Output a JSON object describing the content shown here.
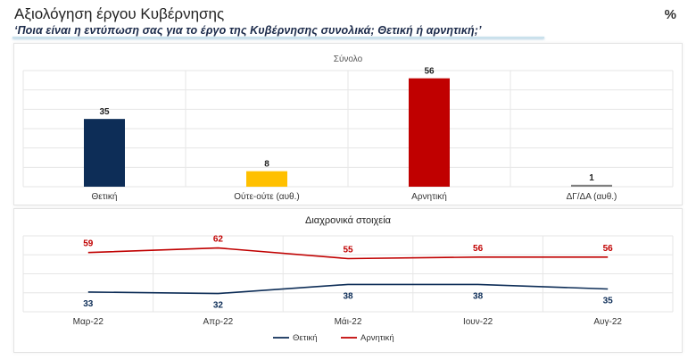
{
  "header": {
    "title": "Αξιολόγηση έργου Κυβέρνησης",
    "subtitle": "‘Ποια είναι η εντύπωση σας για το έργο της Κυβέρνησης συνολικά; Θετική ή αρνητική;’",
    "unit": "%"
  },
  "colors": {
    "positive": "#0d2d57",
    "neutral": "#ffc000",
    "negative": "#c00000",
    "dkna": "#7f7f7f",
    "grid": "#e6e6e6"
  },
  "chart_data": [
    {
      "type": "bar",
      "title": "Σύνολο",
      "categories": [
        "Θετική",
        "Ούτε-ούτε (αυθ.)",
        "Αρνητική",
        "ΔΓ/ΔΑ (αυθ.)"
      ],
      "values": [
        35,
        8,
        56,
        1
      ],
      "ylim": [
        0,
        60
      ],
      "grid": true
    },
    {
      "type": "line",
      "title": "Διαχρονικά στοιχεία",
      "categories": [
        "Μαρ-22",
        "Απρ-22",
        "Μάι-22",
        "Ιουν-22",
        "Αυγ-22"
      ],
      "series": [
        {
          "name": "Θετική",
          "values": [
            33,
            32,
            38,
            38,
            35
          ]
        },
        {
          "name": "Αρνητική",
          "values": [
            59,
            62,
            55,
            56,
            56
          ]
        }
      ],
      "ylim": [
        20,
        70
      ],
      "legend": "bottom",
      "grid": true
    }
  ]
}
